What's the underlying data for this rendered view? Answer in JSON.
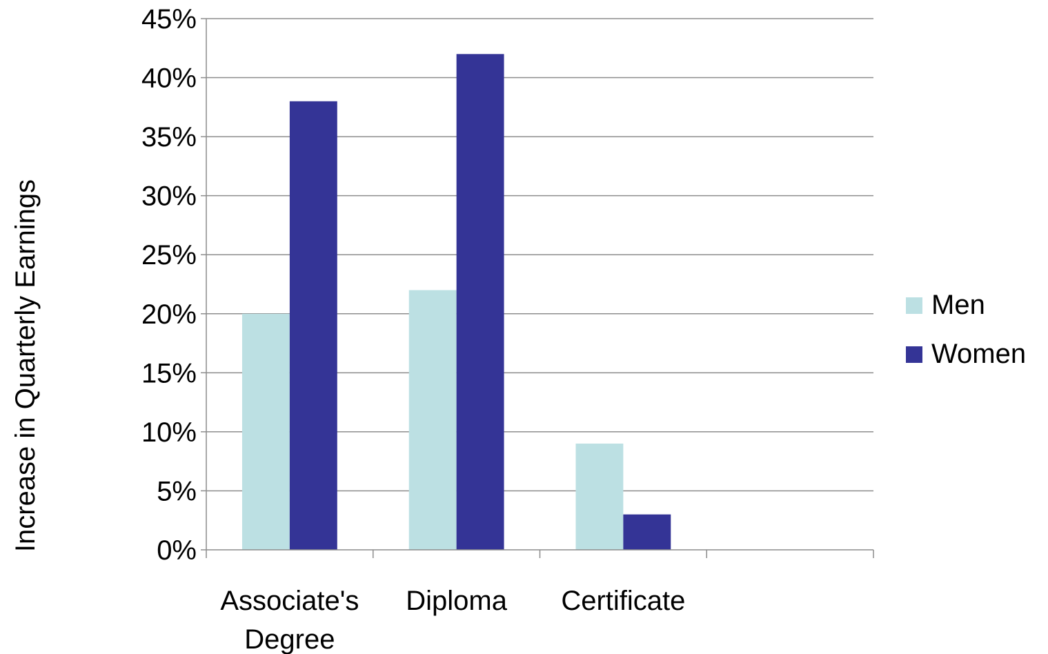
{
  "chart_data": {
    "type": "bar",
    "title": "",
    "xlabel": "",
    "ylabel": "Increase in Quarterly Earnings",
    "categories": [
      "Associate's Degree",
      "Diploma",
      "Certificate",
      ""
    ],
    "category_lines": [
      [
        "Associate's",
        "Degree"
      ],
      [
        "Diploma"
      ],
      [
        "Certificate"
      ],
      []
    ],
    "series": [
      {
        "name": "Men",
        "color": "#bce0e3",
        "values": [
          20,
          22,
          9,
          null
        ]
      },
      {
        "name": "Women",
        "color": "#343496",
        "values": [
          38,
          42,
          3,
          null
        ]
      }
    ],
    "ylim": [
      0,
      45
    ],
    "yticks": [
      0,
      5,
      10,
      15,
      20,
      25,
      30,
      35,
      40,
      45
    ],
    "ytick_labels": [
      "0%",
      "5%",
      "10%",
      "15%",
      "20%",
      "25%",
      "30%",
      "35%",
      "40%",
      "45%"
    ],
    "grid": true,
    "legend_position": "right"
  }
}
